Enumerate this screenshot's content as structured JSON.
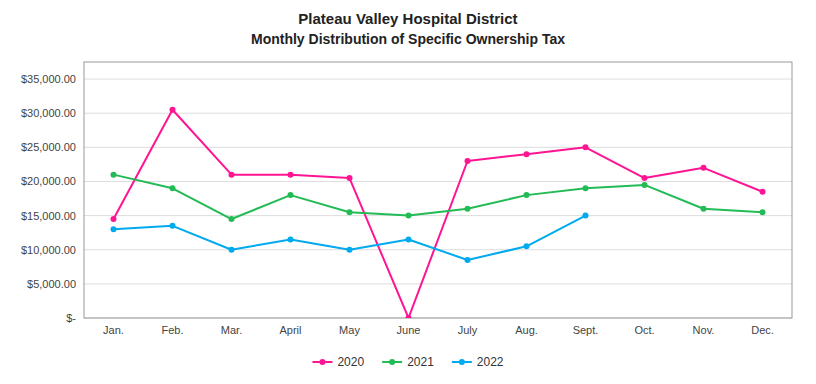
{
  "chart_data": {
    "type": "line",
    "title": "Plateau Valley Hospital District",
    "subtitle": "Monthly Distribution of Specific Ownership Tax",
    "categories": [
      "Jan.",
      "Feb.",
      "Mar.",
      "April",
      "May",
      "June",
      "July",
      "Aug.",
      "Sept.",
      "Oct.",
      "Nov.",
      "Dec."
    ],
    "series": [
      {
        "name": "2020",
        "color": "#FF1493",
        "marker": "circle",
        "values": [
          14500,
          30500,
          21000,
          21000,
          20500,
          0,
          23000,
          24000,
          25000,
          20500,
          22000,
          18500
        ]
      },
      {
        "name": "2021",
        "color": "#22BB55",
        "marker": "circle",
        "values": [
          21000,
          19000,
          14500,
          18000,
          15500,
          15000,
          16000,
          18000,
          19000,
          19500,
          16000,
          15500
        ]
      },
      {
        "name": "2022",
        "color": "#00AAEE",
        "marker": "circle",
        "values": [
          13000,
          13500,
          10000,
          11500,
          10000,
          11500,
          8500,
          10500,
          15000,
          null,
          null,
          null
        ]
      }
    ],
    "ylim": [
      0,
      37500
    ],
    "yticks": [
      {
        "value": 0,
        "label": "$-"
      },
      {
        "value": 5000,
        "label": "$5,000.00"
      },
      {
        "value": 10000,
        "label": "$10,000.00"
      },
      {
        "value": 15000,
        "label": "$15,000.00"
      },
      {
        "value": 20000,
        "label": "$20,000.00"
      },
      {
        "value": 25000,
        "label": "$25,000.00"
      },
      {
        "value": 30000,
        "label": "$30,000.00"
      },
      {
        "value": 35000,
        "label": "$35,000.00"
      }
    ],
    "grid": true,
    "legend": "bottom"
  }
}
